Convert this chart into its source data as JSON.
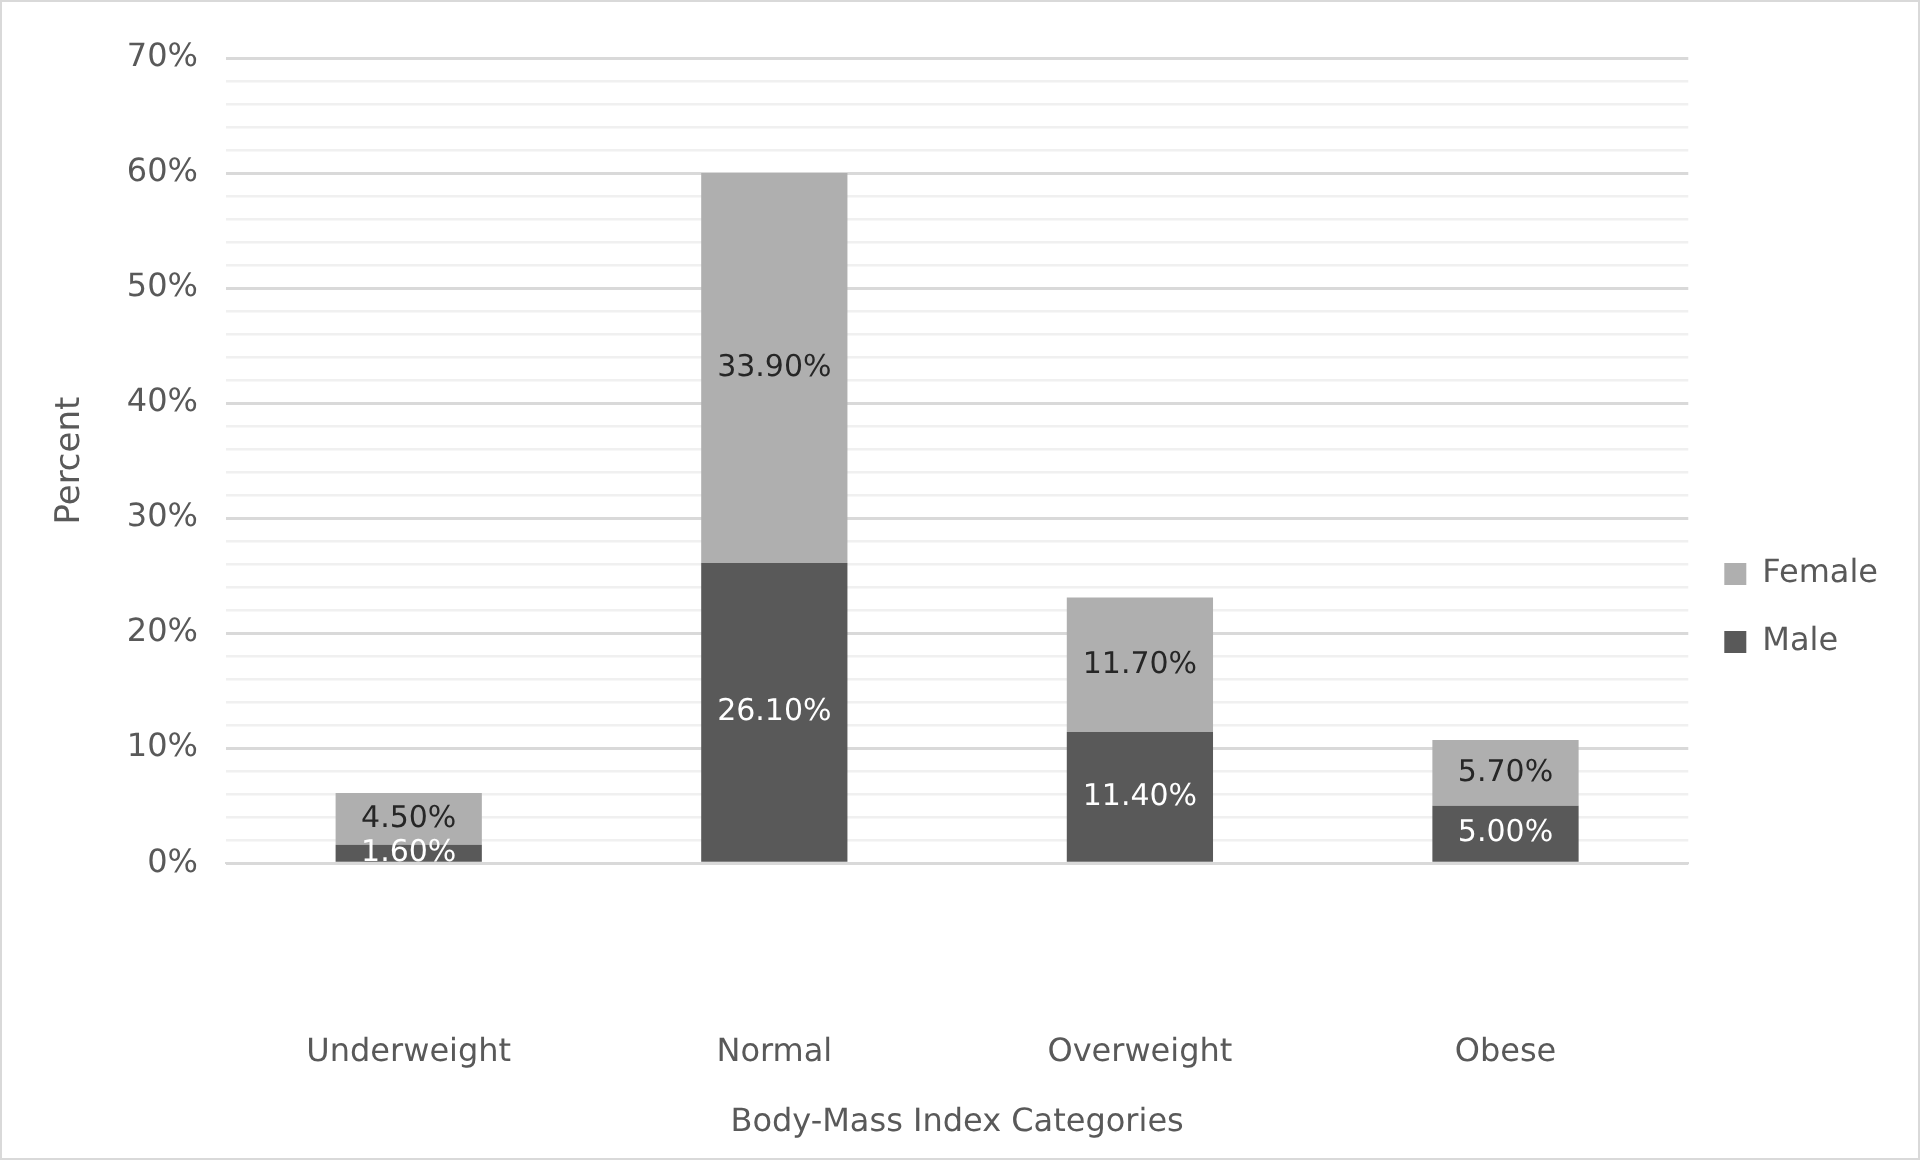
{
  "chart_data": {
    "type": "bar",
    "stacked": true,
    "xlabel": "Body-Mass Index Categories",
    "ylabel": "Percent",
    "categories": [
      "Underweight",
      "Normal",
      "Overweight",
      "Obese"
    ],
    "series": [
      {
        "name": "Male",
        "color": "#595959",
        "values": [
          1.6,
          26.1,
          11.4,
          5.0
        ],
        "value_labels": [
          "1.60%",
          "26.10%",
          "11.40%",
          "5.00%"
        ]
      },
      {
        "name": "Female",
        "color": "#afafaf",
        "values": [
          4.5,
          33.9,
          11.7,
          5.7
        ],
        "value_labels": [
          "4.50%",
          "33.90%",
          "11.70%",
          "5.70%"
        ]
      }
    ],
    "ylim": [
      0,
      70
    ],
    "yticks": [
      {
        "value": 0,
        "label": "0%"
      },
      {
        "value": 2,
        "label": null
      },
      {
        "value": 4,
        "label": null
      },
      {
        "value": 6,
        "label": null
      },
      {
        "value": 8,
        "label": null
      },
      {
        "value": 10,
        "label": "10%"
      },
      {
        "value": 12,
        "label": null
      },
      {
        "value": 14,
        "label": null
      },
      {
        "value": 16,
        "label": null
      },
      {
        "value": 18,
        "label": null
      },
      {
        "value": 20,
        "label": "20%"
      },
      {
        "value": 22,
        "label": null
      },
      {
        "value": 24,
        "label": null
      },
      {
        "value": 26,
        "label": null
      },
      {
        "value": 28,
        "label": null
      },
      {
        "value": 30,
        "label": "30%"
      },
      {
        "value": 32,
        "label": null
      },
      {
        "value": 34,
        "label": null
      },
      {
        "value": 36,
        "label": null
      },
      {
        "value": 38,
        "label": null
      },
      {
        "value": 40,
        "label": "40%"
      },
      {
        "value": 42,
        "label": null
      },
      {
        "value": 44,
        "label": null
      },
      {
        "value": 46,
        "label": null
      },
      {
        "value": 48,
        "label": null
      },
      {
        "value": 50,
        "label": "50%"
      },
      {
        "value": 52,
        "label": null
      },
      {
        "value": 54,
        "label": null
      },
      {
        "value": 56,
        "label": null
      },
      {
        "value": 58,
        "label": null
      },
      {
        "value": 60,
        "label": "60%"
      },
      {
        "value": 62,
        "label": null
      },
      {
        "value": 64,
        "label": null
      },
      {
        "value": 66,
        "label": null
      },
      {
        "value": 68,
        "label": null
      },
      {
        "value": 70,
        "label": "70%"
      }
    ],
    "grid": "y",
    "legend": "right"
  }
}
